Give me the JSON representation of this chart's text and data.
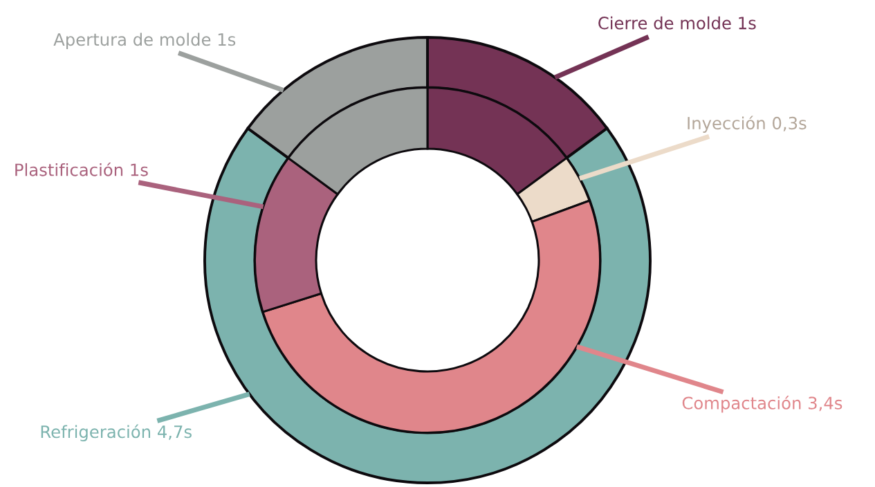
{
  "chart_data": {
    "type": "donut",
    "categories": [
      "Cierre de molde",
      "Inyección",
      "Compactación",
      "Plastificación",
      "Refrigeración",
      "Apertura de molde"
    ],
    "colors": [
      "#743355",
      "#ecdbc9",
      "#e0868b",
      "#aa627d",
      "#7cb3ae",
      "#9ca09e"
    ],
    "series": [
      {
        "values": [
          1,
          null,
          null,
          null,
          4.7,
          1
        ],
        "value_labels": [
          "1s",
          null,
          null,
          null,
          "4,7s",
          "1s"
        ]
      },
      {
        "values": [
          1,
          0.3,
          3.4,
          1,
          null,
          1
        ],
        "value_labels": [
          null,
          "0,3s",
          "3,4s",
          "1s",
          null,
          null
        ]
      }
    ]
  }
}
